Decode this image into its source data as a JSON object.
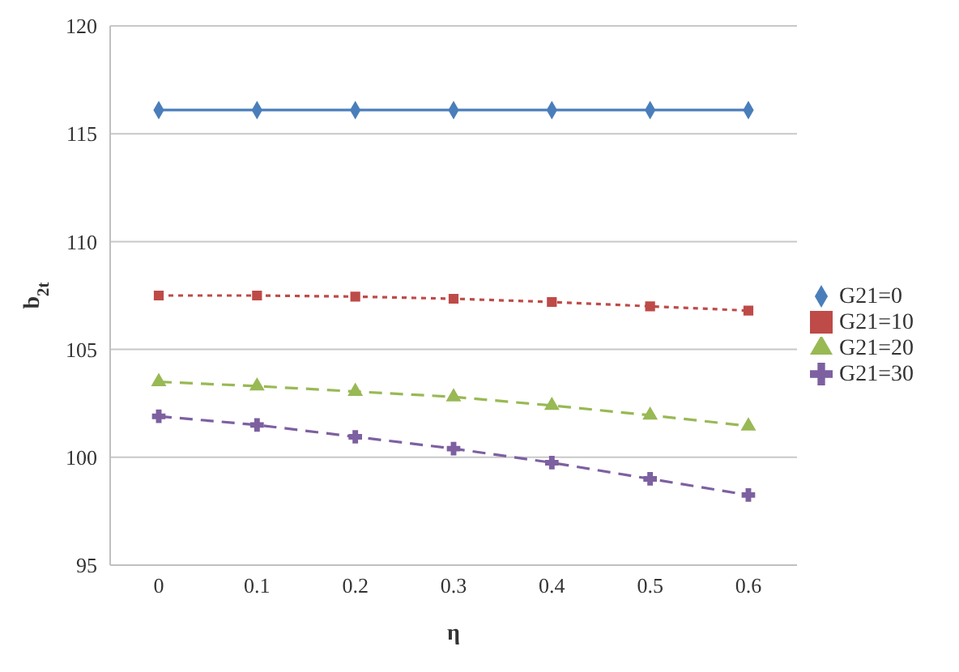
{
  "chart_data": {
    "type": "line",
    "xlabel": "η",
    "ylabel": "b$_{2t}$",
    "categories": [
      "0",
      "0.1",
      "0.2",
      "0.3",
      "0.4",
      "0.5",
      "0.6"
    ],
    "series": [
      {
        "name": "G21=0",
        "color": "#4a7ebb",
        "marker": "diamond",
        "line_style": "solid",
        "values": [
          116.1,
          116.1,
          116.1,
          116.1,
          116.1,
          116.1,
          116.1
        ]
      },
      {
        "name": "G21=10",
        "color": "#be4b48",
        "marker": "square",
        "line_style": "dotted",
        "values": [
          107.5,
          107.5,
          107.45,
          107.35,
          107.2,
          107.0,
          106.8
        ]
      },
      {
        "name": "G21=20",
        "color": "#98b954",
        "marker": "triangle",
        "line_style": "dashed",
        "values": [
          103.5,
          103.3,
          103.05,
          102.8,
          102.4,
          101.95,
          101.45
        ]
      },
      {
        "name": "G21=30",
        "color": "#7d60a0",
        "marker": "cross",
        "line_style": "dashed",
        "values": [
          101.9,
          101.5,
          100.95,
          100.4,
          99.75,
          99.0,
          98.25
        ]
      }
    ],
    "ylim": [
      95,
      120
    ],
    "yticks": [
      95,
      100,
      105,
      110,
      115,
      120
    ],
    "grid": "y",
    "legend": "right"
  }
}
